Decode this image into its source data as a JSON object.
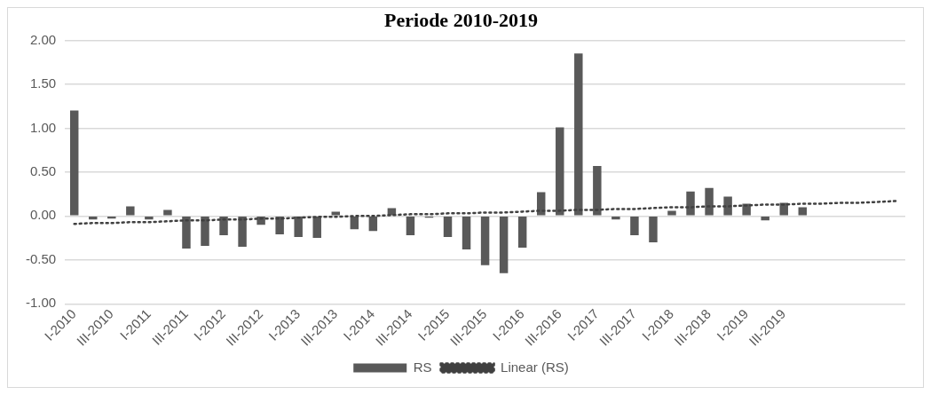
{
  "chart_data": {
    "type": "bar",
    "title": "Periode 2010-2019",
    "categories": [
      "I-2010",
      null,
      "III-2010",
      null,
      "I-2011",
      null,
      "III-2011",
      null,
      "I-2012",
      null,
      "III-2012",
      null,
      "I-2013",
      null,
      "III-2013",
      null,
      "I-2014",
      null,
      "III-2014",
      null,
      "I-2015",
      null,
      "III-2015",
      null,
      "I-2016",
      null,
      "III-2016",
      null,
      "I-2017",
      null,
      "III-2017",
      null,
      "I-2018",
      null,
      "III-2018",
      null,
      "I-2019",
      null,
      "III-2019",
      null,
      null,
      null,
      null,
      null,
      null
    ],
    "series": [
      {
        "name": "RS",
        "color": "#595959",
        "values": [
          1.2,
          -0.04,
          -0.03,
          0.11,
          -0.04,
          0.07,
          -0.37,
          -0.34,
          -0.22,
          -0.35,
          -0.1,
          -0.21,
          -0.24,
          -0.25,
          0.05,
          -0.15,
          -0.17,
          0.09,
          -0.22,
          -0.02,
          -0.24,
          -0.38,
          -0.56,
          -0.65,
          -0.36,
          0.27,
          1.01,
          1.85,
          0.57,
          -0.04,
          -0.22,
          -0.3,
          0.06,
          0.28,
          0.32,
          0.22,
          0.14,
          -0.05,
          0.15,
          0.1,
          null,
          null,
          null,
          null,
          null
        ]
      },
      {
        "name": "Linear (RS)",
        "type": "line",
        "line_style": "dotted",
        "marker": "none",
        "color": "#404040",
        "values": [
          -0.09,
          -0.08,
          -0.08,
          -0.07,
          -0.07,
          -0.06,
          -0.05,
          -0.05,
          -0.04,
          -0.04,
          -0.03,
          -0.03,
          -0.02,
          -0.01,
          -0.01,
          0.0,
          0.0,
          0.01,
          0.02,
          0.02,
          0.03,
          0.03,
          0.04,
          0.04,
          0.05,
          0.06,
          0.06,
          0.07,
          0.07,
          0.08,
          0.08,
          0.09,
          0.1,
          0.1,
          0.11,
          0.11,
          0.12,
          0.13,
          0.13,
          0.14,
          0.14,
          0.15,
          0.15,
          0.16,
          0.17
        ]
      }
    ],
    "ylim": [
      -1,
      2
    ],
    "yticks": [
      {
        "value": -1,
        "label": "-1.00"
      },
      {
        "value": -0.5,
        "label": "-0.50"
      },
      {
        "value": 0,
        "label": "0.00"
      },
      {
        "value": 0.5,
        "label": "0.50"
      },
      {
        "value": 1,
        "label": "1.00"
      },
      {
        "value": 1.5,
        "label": "1.50"
      },
      {
        "value": 2,
        "label": "2.00"
      }
    ],
    "grid": "y",
    "legend": "bottom"
  }
}
